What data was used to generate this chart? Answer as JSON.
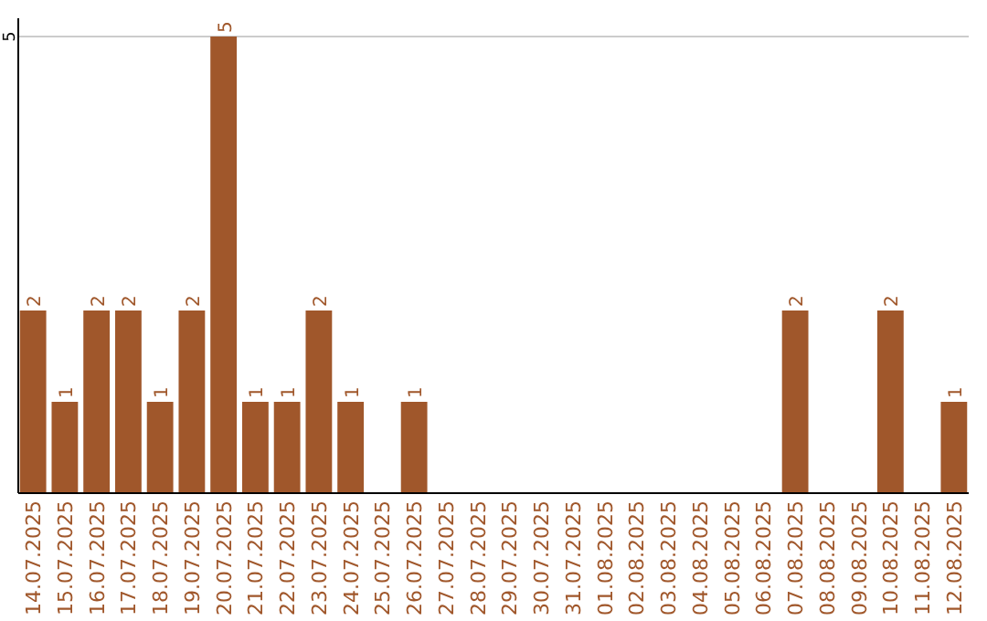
{
  "chart_data": {
    "type": "bar",
    "categories": [
      "14.07.2025",
      "15.07.2025",
      "16.07.2025",
      "17.07.2025",
      "18.07.2025",
      "19.07.2025",
      "20.07.2025",
      "21.07.2025",
      "22.07.2025",
      "23.07.2025",
      "24.07.2025",
      "25.07.2025",
      "26.07.2025",
      "27.07.2025",
      "28.07.2025",
      "29.07.2025",
      "30.07.2025",
      "31.07.2025",
      "01.08.2025",
      "02.08.2025",
      "03.08.2025",
      "04.08.2025",
      "05.08.2025",
      "06.08.2025",
      "07.08.2025",
      "08.08.2025",
      "09.08.2025",
      "10.08.2025",
      "11.08.2025",
      "12.08.2025"
    ],
    "values": [
      2,
      1,
      2,
      2,
      1,
      2,
      5,
      1,
      1,
      2,
      1,
      0,
      1,
      0,
      0,
      0,
      0,
      0,
      0,
      0,
      0,
      0,
      0,
      0,
      2,
      0,
      0,
      2,
      0,
      1
    ],
    "value_labels": [
      "2",
      "1",
      "2",
      "2",
      "1",
      "2",
      "5",
      "1",
      "1",
      "2",
      "1",
      null,
      "1",
      null,
      null,
      null,
      null,
      null,
      null,
      null,
      null,
      null,
      null,
      null,
      "2",
      null,
      null,
      "2",
      null,
      "1"
    ],
    "color": "#a0572b",
    "ylim": [
      0,
      5.2
    ],
    "yticks": [
      5
    ],
    "grid": "y"
  }
}
